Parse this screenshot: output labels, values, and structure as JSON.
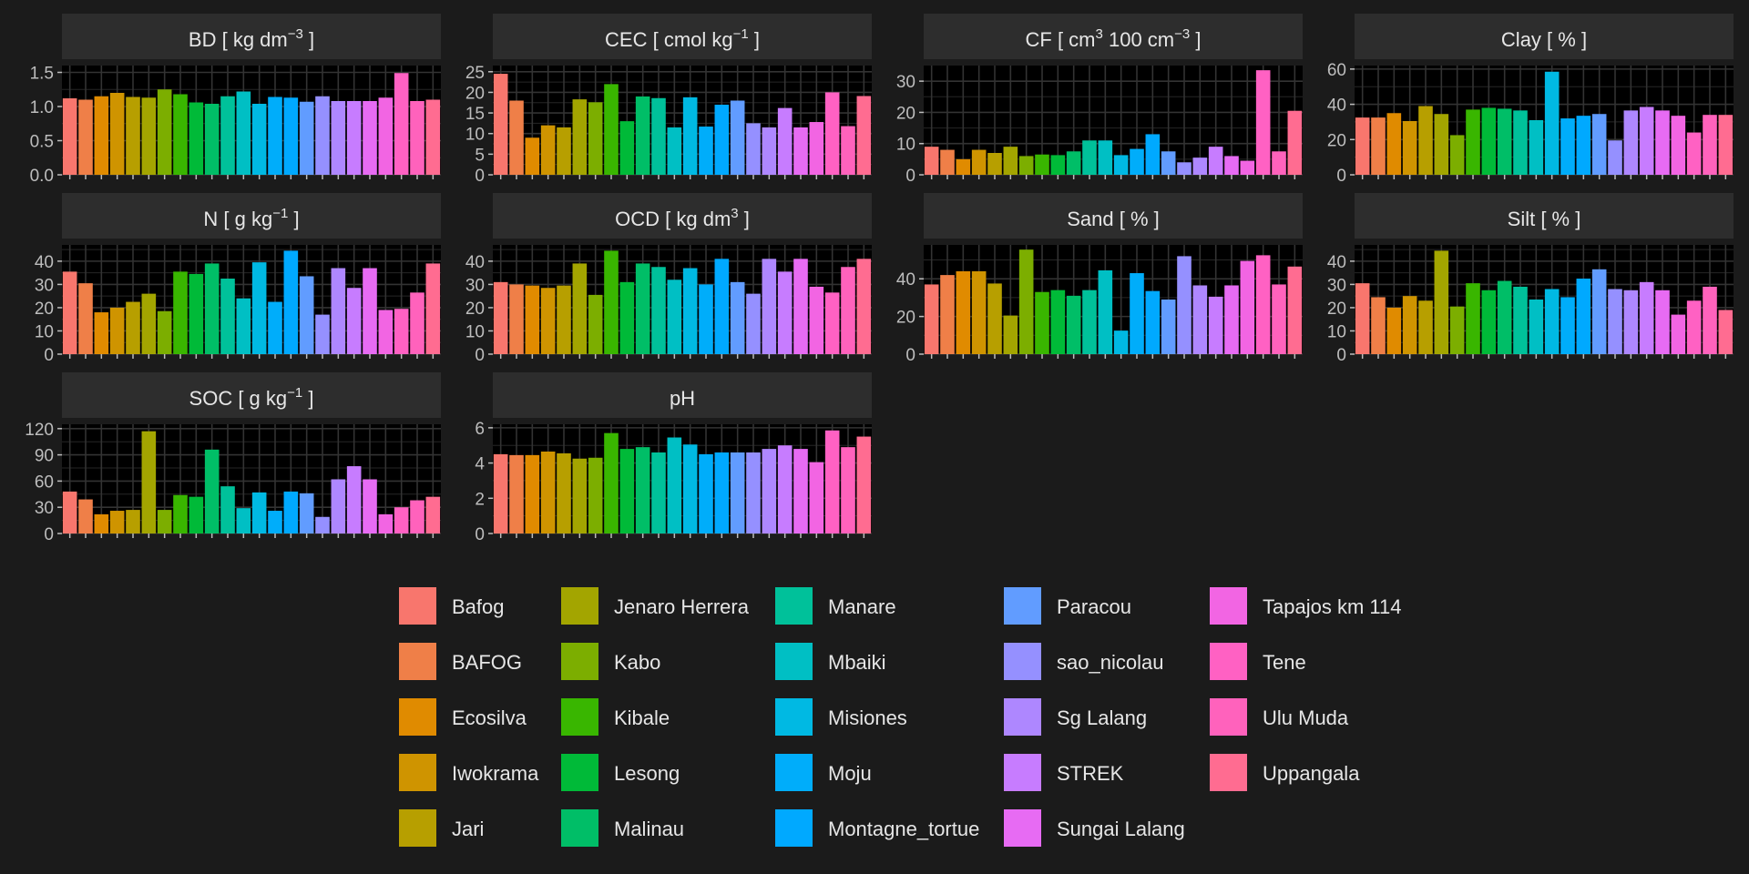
{
  "chart_data": {
    "type": "bar",
    "layout": "faceted small multiples, 4 columns x 3 rows, shared legend below, x tick labels blank",
    "background": "#1b1b1b",
    "strip_color": "#2d2d2d",
    "panel_color": "#000000",
    "grid": "on",
    "legend_position": "bottom",
    "sites": [
      "Bafog",
      "BAFOG",
      "Ecosilva",
      "Iwokrama",
      "Jari",
      "Jenaro Herrera",
      "Kabo",
      "Kibale",
      "Lesong",
      "Malinau",
      "Manare",
      "Mbaiki",
      "Misiones",
      "Moju",
      "Montagne_tortue",
      "Paracou",
      "sao_nicolau",
      "Sg Lalang",
      "STREK",
      "Sungai Lalang",
      "Tapajos km 114",
      "Tene",
      "Ulu Muda",
      "Uppangala"
    ],
    "colors": [
      "#F8766D",
      "#EF7F48",
      "#E08B00",
      "#CF9400",
      "#B79F00",
      "#A3A500",
      "#7CAE00",
      "#39B600",
      "#00BA38",
      "#00BE67",
      "#00C19A",
      "#00BFC4",
      "#00B9E3",
      "#00ADFA",
      "#00A9FF",
      "#619CFF",
      "#9590FF",
      "#AE87FF",
      "#C77CFF",
      "#E76BF3",
      "#F265E3",
      "#FF61C3",
      "#FF62BC",
      "#FF6C91"
    ],
    "facets": [
      {
        "id": "BD",
        "title_main": "BD [ kg dm",
        "title_sup": "−3",
        "title_end": " ]",
        "ylim": [
          0,
          1.6
        ],
        "ticks": [
          "0.0",
          "0.5",
          "1.0",
          "1.5"
        ],
        "values": [
          1.12,
          1.1,
          1.15,
          1.2,
          1.14,
          1.13,
          1.25,
          1.18,
          1.06,
          1.04,
          1.15,
          1.22,
          1.04,
          1.14,
          1.13,
          1.07,
          1.15,
          1.08,
          1.08,
          1.08,
          1.13,
          1.49,
          1.08,
          1.1
        ]
      },
      {
        "id": "CEC",
        "title_main": "CEC [ cmol kg",
        "title_sup": "−1",
        "title_end": " ]",
        "ylim": [
          0,
          26.5
        ],
        "ticks": [
          "0",
          "5",
          "10",
          "15",
          "20",
          "25"
        ],
        "values": [
          24.5,
          18,
          9,
          12,
          11.5,
          18.3,
          17.6,
          22,
          13,
          19,
          18.6,
          11.5,
          18.8,
          11.7,
          17,
          18,
          12.5,
          11.5,
          16.2,
          11.5,
          12.8,
          20,
          11.8,
          19.1
        ]
      },
      {
        "id": "CF",
        "title_main": "CF [ cm",
        "title_sup": "3",
        "title_end": " 100 cm",
        "title_sup2": "−3",
        "title_end2": " ]",
        "ylim": [
          0,
          35
        ],
        "ticks": [
          "0",
          "10",
          "20",
          "30"
        ],
        "values": [
          9,
          8,
          5,
          8,
          7,
          9,
          6,
          6.5,
          6.3,
          7.5,
          11,
          11,
          6.3,
          8.3,
          13,
          7.5,
          4,
          5.5,
          9,
          6,
          4.5,
          33.5,
          7.5,
          20.5
        ]
      },
      {
        "id": "Clay",
        "title_main": "Clay [ % ]",
        "ylim": [
          0,
          62
        ],
        "ticks": [
          "0",
          "20",
          "40",
          "60"
        ],
        "values": [
          32.5,
          32.5,
          35,
          30.5,
          39,
          34.5,
          22.5,
          37,
          38,
          37.5,
          36.5,
          31,
          58.5,
          32,
          33.5,
          34.5,
          19.5,
          36.5,
          38.5,
          36.5,
          33.5,
          24,
          34,
          34
        ]
      },
      {
        "id": "N",
        "title_main": "N [ g kg",
        "title_sup": "−1",
        "title_end": " ]",
        "ylim": [
          0,
          47
        ],
        "ticks": [
          "0",
          "10",
          "20",
          "30",
          "40"
        ],
        "values": [
          35.5,
          30.5,
          18,
          20,
          22.5,
          26,
          18.5,
          35.5,
          34.5,
          39,
          32.5,
          24,
          39.5,
          22.5,
          44.5,
          33.5,
          17,
          37,
          28.5,
          37,
          19,
          19.5,
          26.5,
          39
        ]
      },
      {
        "id": "OCD",
        "title_main": "OCD [ kg dm",
        "title_sup": "3",
        "title_end": " ]",
        "ylim": [
          0,
          47
        ],
        "ticks": [
          "0",
          "10",
          "20",
          "30",
          "40"
        ],
        "values": [
          31,
          30,
          29.5,
          28.5,
          29.5,
          39,
          25.5,
          44.5,
          31,
          39,
          37.5,
          32,
          37,
          30,
          41,
          31,
          26,
          41,
          35.5,
          41,
          29,
          26.5,
          37.5,
          41
        ]
      },
      {
        "id": "Sand",
        "title_main": "Sand [ % ]",
        "ylim": [
          0,
          58
        ],
        "ticks": [
          "0",
          "20",
          "40"
        ],
        "values": [
          37,
          42,
          44,
          44,
          37.5,
          20.5,
          55.5,
          33,
          34,
          31,
          34,
          44.5,
          12.5,
          43,
          33.5,
          29,
          52,
          36.5,
          30.5,
          36.5,
          49.5,
          52.5,
          37,
          46.5
        ]
      },
      {
        "id": "Silt",
        "title_main": "Silt [ % ]",
        "ylim": [
          0,
          47
        ],
        "ticks": [
          "0",
          "10",
          "20",
          "30",
          "40"
        ],
        "values": [
          30.5,
          24.5,
          20,
          25,
          23,
          44.5,
          20.5,
          30.5,
          27.5,
          31.5,
          29,
          23.5,
          28,
          24.5,
          32.5,
          36.5,
          28,
          27.5,
          31,
          27.5,
          17,
          23,
          29,
          19
        ]
      },
      {
        "id": "SOC",
        "title_main": "SOC [ g kg",
        "title_sup": "−1",
        "title_end": " ]",
        "ylim": [
          0,
          125
        ],
        "ticks": [
          "0",
          "30",
          "60",
          "90",
          "120"
        ],
        "values": [
          48,
          39,
          22,
          26,
          27,
          117,
          27,
          44,
          42,
          96,
          54,
          29,
          47,
          26,
          48,
          46,
          19,
          62,
          77,
          62,
          22,
          30,
          38,
          42
        ]
      },
      {
        "id": "pH",
        "title_main": "pH",
        "ylim": [
          0,
          6.2
        ],
        "ticks": [
          "0",
          "2",
          "4",
          "6"
        ],
        "values": [
          4.5,
          4.45,
          4.45,
          4.65,
          4.55,
          4.25,
          4.3,
          5.7,
          4.8,
          4.9,
          4.6,
          5.45,
          5.05,
          4.5,
          4.6,
          4.6,
          4.6,
          4.8,
          5.0,
          4.8,
          4.05,
          5.85,
          4.9,
          5.5
        ]
      }
    ]
  }
}
